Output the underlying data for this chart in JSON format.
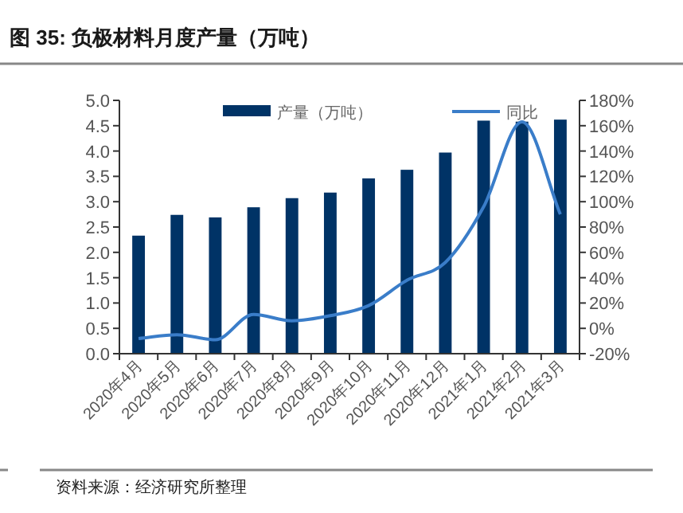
{
  "chart_data": {
    "type": "bar",
    "title": "图 35: 负极材料月度产量（万吨）",
    "categories": [
      "2020年4月",
      "2020年5月",
      "2020年6月",
      "2020年7月",
      "2020年8月",
      "2020年9月",
      "2020年10月",
      "2020年11月",
      "2020年12月",
      "2021年1月",
      "2021年2月",
      "2021年3月"
    ],
    "series": [
      {
        "name": "产量（万吨）",
        "color": "#003366",
        "values": [
          2.33,
          2.74,
          2.69,
          2.89,
          3.07,
          3.18,
          3.46,
          3.63,
          3.97,
          4.6,
          4.58,
          4.62
        ]
      },
      {
        "name": "同比",
        "type": "line",
        "axis": "y2",
        "color": "#3a7dc9",
        "values": [
          -8,
          -5,
          -9,
          11,
          6,
          10,
          18,
          38,
          52,
          96,
          163,
          90
        ]
      }
    ],
    "ylim": [
      0,
      5
    ],
    "yticks": [
      {
        "value": 0,
        "label": "0.0"
      },
      {
        "value": 0.5,
        "label": "0.5"
      },
      {
        "value": 1,
        "label": "1.0"
      },
      {
        "value": 1.5,
        "label": "1.5"
      },
      {
        "value": 2,
        "label": "2.0"
      },
      {
        "value": 2.5,
        "label": "2.5"
      },
      {
        "value": 3,
        "label": "3.0"
      },
      {
        "value": 3.5,
        "label": "3.5"
      },
      {
        "value": 4,
        "label": "4.0"
      },
      {
        "value": 4.5,
        "label": "4.5"
      },
      {
        "value": 5,
        "label": "5.0"
      }
    ],
    "y2lim": [
      -20,
      180
    ],
    "y2ticks": [
      {
        "value": -20,
        "label": "-20%"
      },
      {
        "value": 0,
        "label": "0%"
      },
      {
        "value": 20,
        "label": "20%"
      },
      {
        "value": 40,
        "label": "40%"
      },
      {
        "value": 60,
        "label": "60%"
      },
      {
        "value": 80,
        "label": "80%"
      },
      {
        "value": 100,
        "label": "100%"
      },
      {
        "value": 120,
        "label": "120%"
      },
      {
        "value": 140,
        "label": "140%"
      },
      {
        "value": 160,
        "label": "160%"
      },
      {
        "value": 180,
        "label": "180%"
      }
    ],
    "legend": "top",
    "grid": false,
    "annotations": [
      "资料来源：经济研究所整理"
    ]
  }
}
